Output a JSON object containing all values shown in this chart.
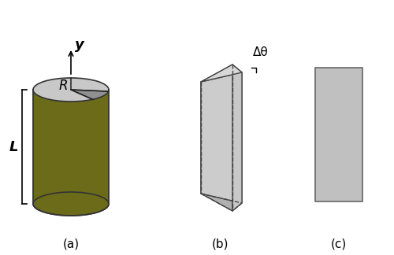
{
  "bg_color": "#ffffff",
  "cylinder_body_color": "#6b6b1a",
  "cylinder_top_color": "#c8c8c8",
  "cylinder_top_dark_slice_color": "#909090",
  "slice_light_color": "#cccccc",
  "slice_dark_color": "#aaaaaa",
  "slice_edge_color": "#444444",
  "rect_color": "#c0c0c0",
  "rect_edge_color": "#666666",
  "label_a": "(a)",
  "label_b": "(b)",
  "label_c": "(c)",
  "label_R": "R",
  "label_L": "L",
  "label_y": "y",
  "label_delta_theta": "Δθ",
  "font_size": 11,
  "font_size_label": 12
}
